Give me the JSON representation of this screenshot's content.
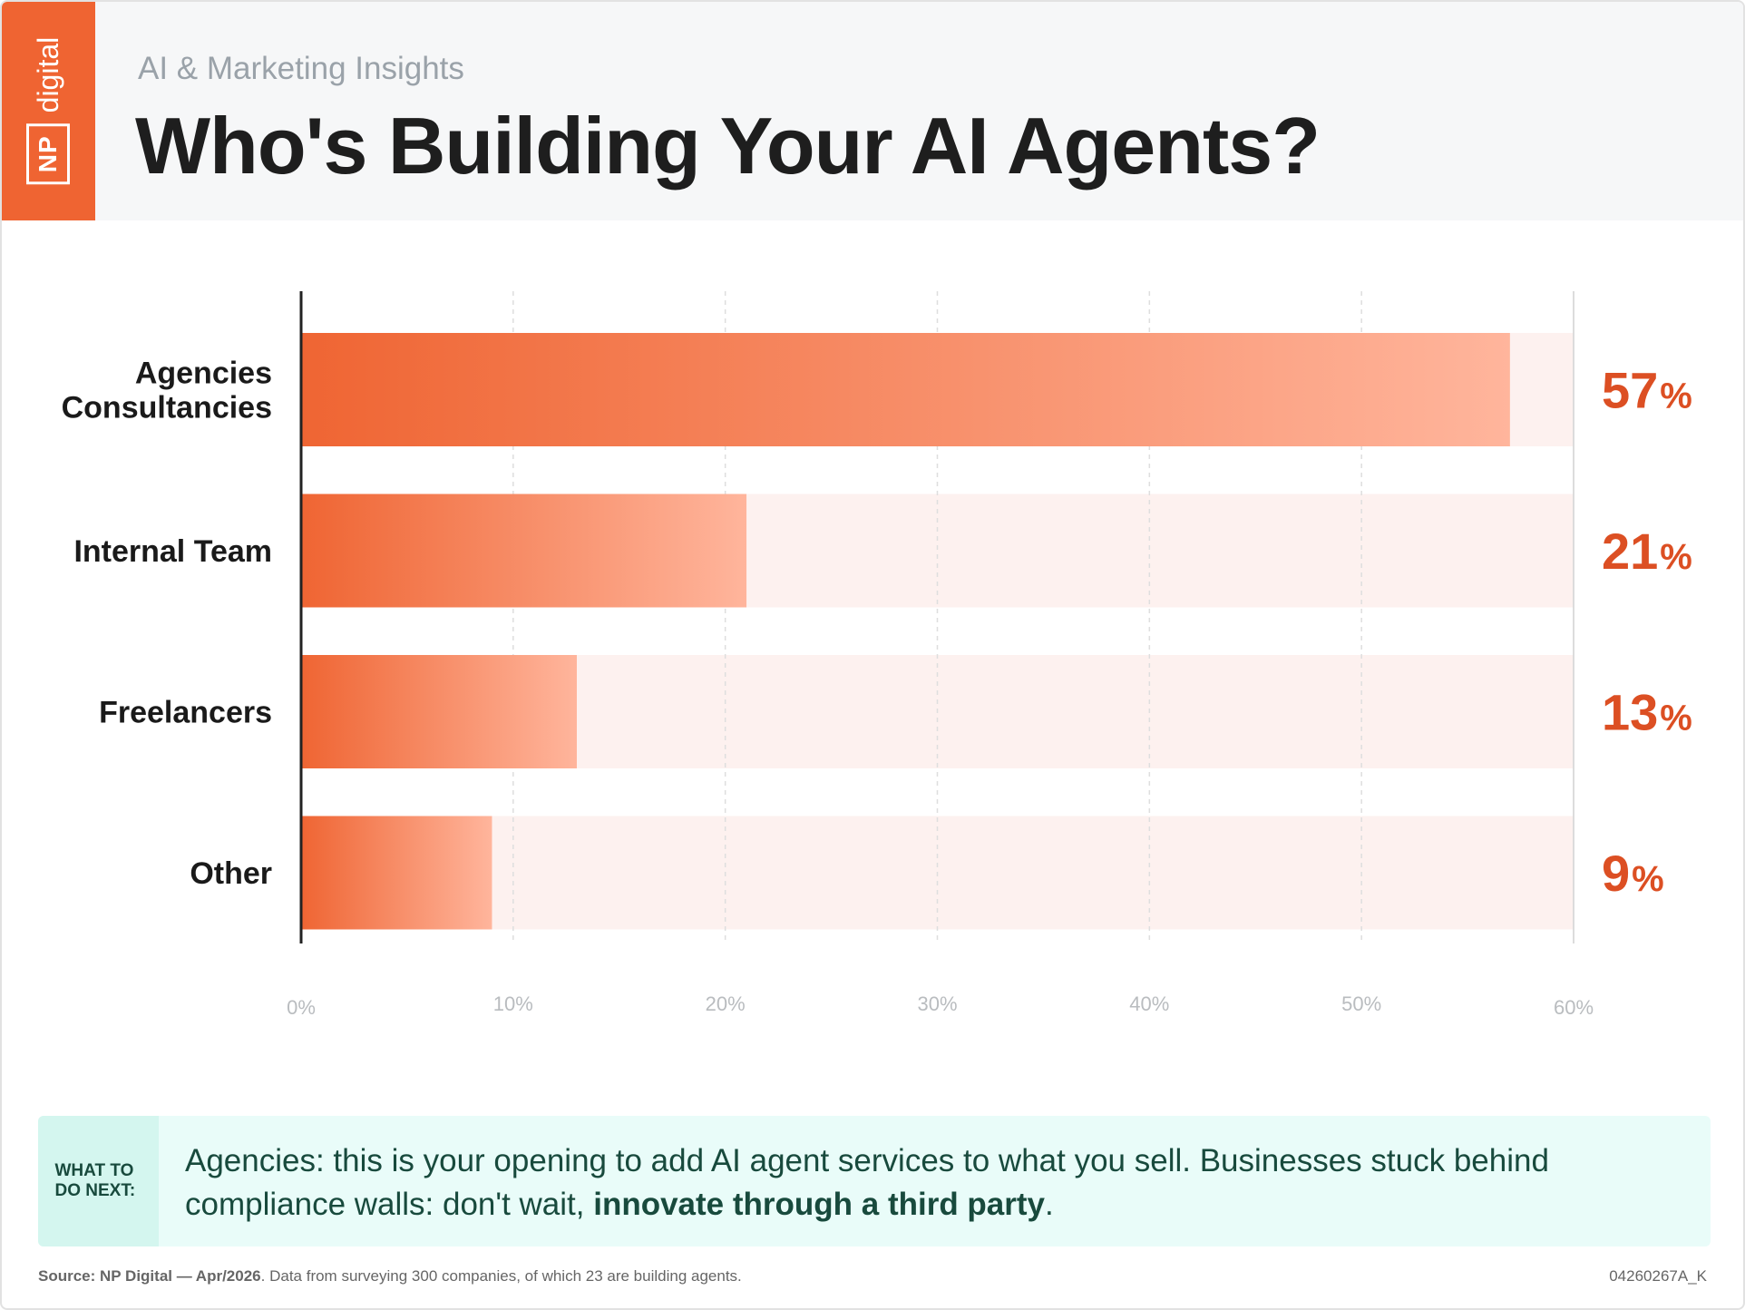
{
  "header": {
    "logo_np": "NP",
    "logo_digital": "digital",
    "kicker": "AI & Marketing Insights",
    "title": "Who's Building Your AI Agents?"
  },
  "colors": {
    "bar_start": "#ef6533",
    "bar_end": "#ffb59c",
    "track": "#fdf1ef",
    "value_text": "#dc4f23",
    "callout_bg": "#e9fcf9",
    "callout_text": "#184a3d"
  },
  "chart_data": {
    "type": "bar",
    "orientation": "horizontal",
    "categories": [
      "Agencies\nConsultancies",
      "Internal Team",
      "Freelancers",
      "Other"
    ],
    "values": [
      57,
      21,
      13,
      9
    ],
    "value_labels": [
      "57",
      "21",
      "13",
      "9"
    ],
    "value_suffix": "%",
    "xlim": [
      0,
      60
    ],
    "ticks": [
      0,
      10,
      20,
      30,
      40,
      50,
      60
    ],
    "tick_labels": [
      "0%",
      "10%",
      "20%",
      "30%",
      "40%",
      "50%",
      "60%"
    ],
    "grid": true
  },
  "callout": {
    "tag": "WHAT TO DO NEXT:",
    "text_before": "Agencies: this is your opening to add AI agent services to what you sell. Businesses stuck behind compliance walls: don't wait, ",
    "text_bold": "innovate through a third party",
    "text_after": "."
  },
  "footer": {
    "source_bold": "Source: NP Digital — Apr/2026",
    "source_rest": ". Data from surveying 300 companies, of which 23 are building agents.",
    "code": "04260267A_K"
  }
}
